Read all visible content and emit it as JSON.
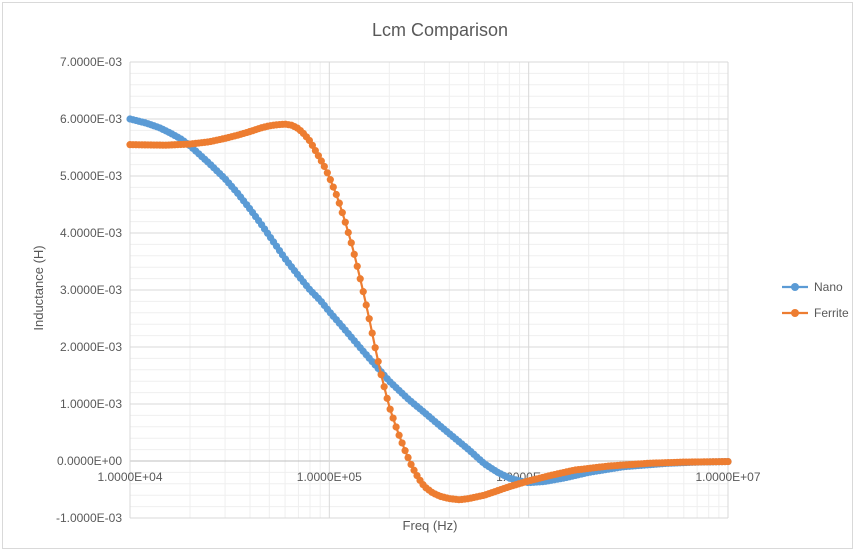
{
  "chart_data": {
    "type": "scatter",
    "title": "Lcm Comparison",
    "xlabel": "Freq (Hz)",
    "ylabel": "Inductance (H)",
    "x_scale": "log",
    "xlim": [
      10000,
      10000000
    ],
    "ylim": [
      -0.001,
      0.007
    ],
    "grid": true,
    "legend_position": "right",
    "x_ticks": [
      "1.0000E+04",
      "1.0000E+05",
      "1.0000E+06",
      "1.0000E+07"
    ],
    "y_ticks": [
      "7.0000E-03",
      "6.0000E-03",
      "5.0000E-03",
      "4.0000E-03",
      "3.0000E-03",
      "2.0000E-03",
      "1.0000E-03",
      "0.0000E+00",
      "-1.0000E-03"
    ],
    "series": [
      {
        "name": "Nano",
        "color": "#5b9bd5",
        "points": [
          [
            10000,
            0.006
          ],
          [
            12000,
            0.00593
          ],
          [
            14000,
            0.00585
          ],
          [
            16000,
            0.00575
          ],
          [
            18000,
            0.00565
          ],
          [
            20000,
            0.00553
          ],
          [
            25000,
            0.00522
          ],
          [
            30000,
            0.00495
          ],
          [
            35000,
            0.00468
          ],
          [
            40000,
            0.00442
          ],
          [
            45000,
            0.00418
          ],
          [
            50000,
            0.00395
          ],
          [
            60000,
            0.00355
          ],
          [
            70000,
            0.00325
          ],
          [
            80000,
            0.003
          ],
          [
            90000,
            0.00282
          ],
          [
            100000,
            0.00262
          ],
          [
            120000,
            0.0023
          ],
          [
            150000,
            0.0019
          ],
          [
            200000,
            0.0014
          ],
          [
            250000,
            0.00108
          ],
          [
            300000,
            0.00085
          ],
          [
            350000,
            0.00065
          ],
          [
            400000,
            0.00048
          ],
          [
            500000,
            0.0002
          ],
          [
            600000,
            -5e-05
          ],
          [
            700000,
            -0.0002
          ],
          [
            800000,
            -0.0003
          ],
          [
            900000,
            -0.00035
          ],
          [
            1000000,
            -0.00038
          ],
          [
            1200000,
            -0.00036
          ],
          [
            1500000,
            -0.0003
          ],
          [
            2000000,
            -0.0002
          ],
          [
            3000000,
            -0.0001
          ],
          [
            5000000,
            -4e-05
          ],
          [
            7000000,
            -2e-05
          ],
          [
            10000000,
            -1e-05
          ]
        ]
      },
      {
        "name": "Ferrite",
        "color": "#ed7d31",
        "points": [
          [
            10000,
            0.00555
          ],
          [
            15000,
            0.00554
          ],
          [
            20000,
            0.00556
          ],
          [
            25000,
            0.0056
          ],
          [
            30000,
            0.00566
          ],
          [
            35000,
            0.00572
          ],
          [
            40000,
            0.00578
          ],
          [
            45000,
            0.00584
          ],
          [
            50000,
            0.00588
          ],
          [
            55000,
            0.0059
          ],
          [
            60000,
            0.00591
          ],
          [
            65000,
            0.00589
          ],
          [
            70000,
            0.00583
          ],
          [
            75000,
            0.00573
          ],
          [
            80000,
            0.00561
          ],
          [
            85000,
            0.00545
          ],
          [
            90000,
            0.0053
          ],
          [
            95000,
            0.00515
          ],
          [
            100000,
            0.00498
          ],
          [
            110000,
            0.00462
          ],
          [
            120000,
            0.0042
          ],
          [
            130000,
            0.00378
          ],
          [
            140000,
            0.00333
          ],
          [
            150000,
            0.00288
          ],
          [
            160000,
            0.00243
          ],
          [
            170000,
            0.00198
          ],
          [
            180000,
            0.00158
          ],
          [
            190000,
            0.00125
          ],
          [
            200000,
            0.00095
          ],
          [
            220000,
            0.00052
          ],
          [
            240000,
            0.00018
          ],
          [
            260000,
            -0.0001
          ],
          [
            280000,
            -0.0003
          ],
          [
            300000,
            -0.00045
          ],
          [
            330000,
            -0.00056
          ],
          [
            360000,
            -0.00062
          ],
          [
            400000,
            -0.00066
          ],
          [
            450000,
            -0.00068
          ],
          [
            500000,
            -0.00066
          ],
          [
            600000,
            -0.0006
          ],
          [
            700000,
            -0.00052
          ],
          [
            800000,
            -0.00045
          ],
          [
            1000000,
            -0.00035
          ],
          [
            1300000,
            -0.00025
          ],
          [
            1700000,
            -0.00016
          ],
          [
            2500000,
            -9e-05
          ],
          [
            4000000,
            -4e-05
          ],
          [
            6000000,
            -2e-05
          ],
          [
            10000000,
            -1e-05
          ]
        ]
      }
    ]
  }
}
